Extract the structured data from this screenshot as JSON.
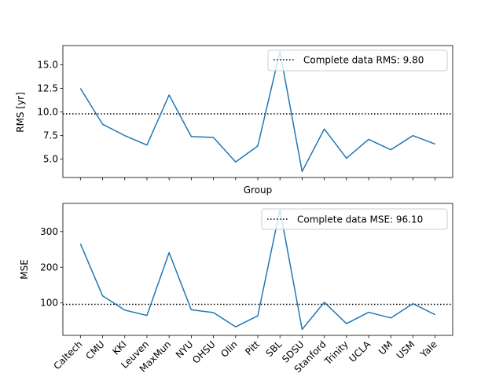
{
  "chart_data": [
    {
      "type": "line",
      "categories": [
        "Caltech",
        "CMU",
        "KKI",
        "Leuven",
        "MaxMun",
        "NYU",
        "OHSU",
        "Olin",
        "Pitt",
        "SBL",
        "SDSU",
        "Stanford",
        "Trinity",
        "UCLA",
        "UM",
        "USM",
        "Yale"
      ],
      "series": [
        {
          "values": [
            12.5,
            8.7,
            7.5,
            6.5,
            11.8,
            7.4,
            7.3,
            4.7,
            6.4,
            16.4,
            3.7,
            8.2,
            5.1,
            7.1,
            6.0,
            7.5,
            6.6
          ],
          "color": "#1f77b4"
        }
      ],
      "reference_line": {
        "value": 9.8,
        "label": "Complete data RMS: 9.80",
        "style": "dotted",
        "color": "#000000"
      },
      "title": "",
      "xlabel": "Group",
      "ylabel": "RMS [yr]",
      "ylim": [
        3.06,
        17.04
      ],
      "yticks": [
        "5.0",
        "7.5",
        "10.0",
        "12.5",
        "15.0"
      ],
      "show_xtick_labels": false,
      "legend_position": "top-right",
      "grid": false
    },
    {
      "type": "line",
      "categories": [
        "Caltech",
        "CMU",
        "KKI",
        "Leuven",
        "MaxMun",
        "NYU",
        "OHSU",
        "Olin",
        "Pitt",
        "SBL",
        "SDSU",
        "Stanford",
        "Trinity",
        "UCLA",
        "UM",
        "USM",
        "Yale"
      ],
      "series": [
        {
          "values": [
            266,
            120,
            80,
            65,
            241,
            81,
            73,
            33,
            64,
            362,
            26,
            102,
            42,
            74,
            58,
            98,
            67
          ],
          "color": "#1f77b4"
        }
      ],
      "reference_line": {
        "value": 96.1,
        "label": "Complete data MSE: 96.10",
        "style": "dotted",
        "color": "#000000"
      },
      "title": "",
      "xlabel": "",
      "ylabel": "MSE",
      "ylim": [
        9.2,
        378.8
      ],
      "yticks": [
        "100",
        "200",
        "300"
      ],
      "show_xtick_labels": true,
      "legend_position": "top-right",
      "grid": false
    }
  ]
}
